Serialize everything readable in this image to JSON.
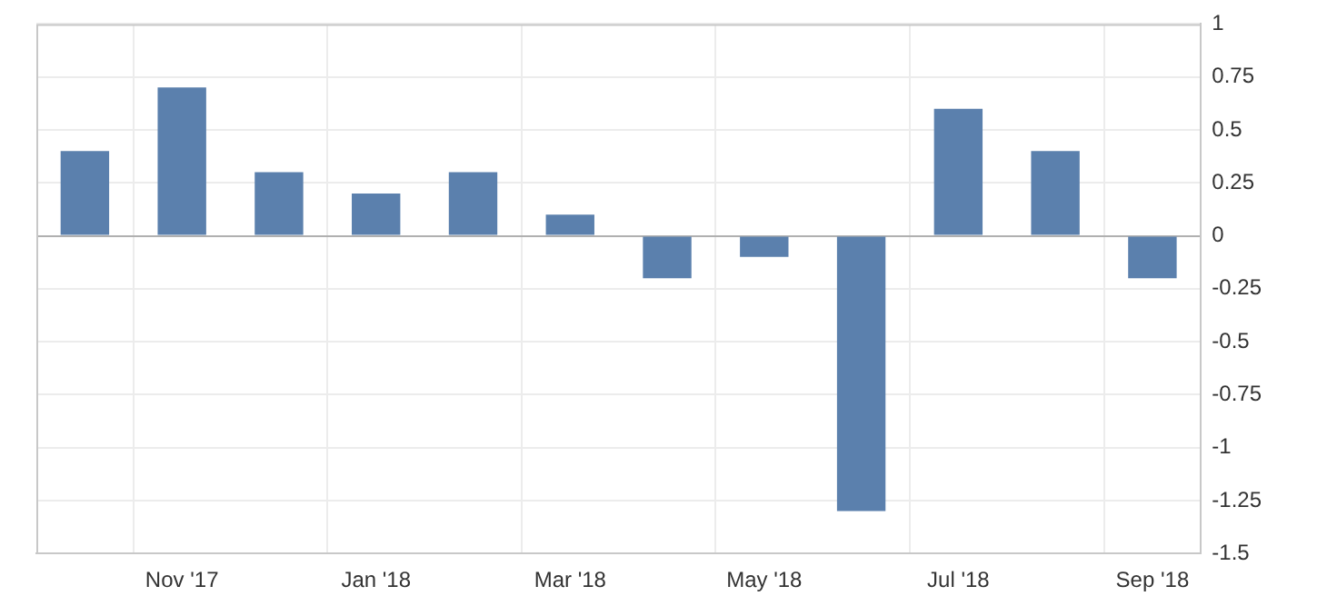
{
  "chart_data": {
    "type": "bar",
    "categories": [
      null,
      "Nov '17",
      null,
      "Jan '18",
      null,
      "Mar '18",
      null,
      "May '18",
      null,
      "Jul '18",
      null,
      "Sep '18"
    ],
    "values": [
      0.4,
      0.7,
      0.3,
      0.2,
      0.3,
      0.1,
      -0.2,
      -0.1,
      -1.3,
      0.6,
      0.4,
      -0.2
    ],
    "color": "#5b80ad",
    "ylim": [
      -1.5,
      1
    ],
    "yticks": [
      1,
      0.75,
      0.5,
      0.25,
      0,
      -0.25,
      -0.5,
      -0.75,
      -1,
      -1.25,
      -1.5
    ],
    "grid": true,
    "legend": false
  }
}
